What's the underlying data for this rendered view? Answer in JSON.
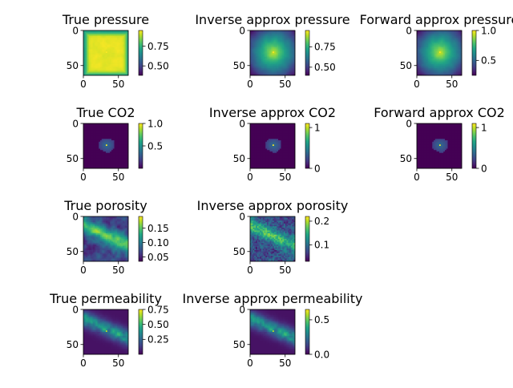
{
  "figure": {
    "colormap": "viridis"
  },
  "chart_data": [
    {
      "type": "heatmap",
      "id": "true-pressure",
      "title": "True pressure",
      "xticks": [
        "0",
        "50"
      ],
      "yticks": [
        "0",
        "50"
      ],
      "xlim": [
        0,
        64
      ],
      "ylim": [
        64,
        0
      ],
      "colorbar": {
        "min": 0.38,
        "max": 0.95,
        "ticks": [
          {
            "v": 0.75,
            "label": "0.75"
          },
          {
            "v": 0.5,
            "label": "0.50"
          }
        ]
      },
      "pattern": "pressure-plateau"
    },
    {
      "type": "heatmap",
      "id": "inverse-pressure",
      "title": "Inverse approx pressure",
      "xticks": [
        "0",
        "50"
      ],
      "yticks": [
        "0",
        "50"
      ],
      "xlim": [
        0,
        64
      ],
      "ylim": [
        64,
        0
      ],
      "colorbar": {
        "min": 0.4,
        "max": 0.95,
        "ticks": [
          {
            "v": 0.75,
            "label": "0.75"
          },
          {
            "v": 0.5,
            "label": "0.50"
          }
        ]
      },
      "pattern": "pressure-smooth"
    },
    {
      "type": "heatmap",
      "id": "forward-pressure",
      "title": "Forward approx pressure",
      "xticks": [
        "0",
        "50"
      ],
      "yticks": [
        "0",
        "50"
      ],
      "xlim": [
        0,
        64
      ],
      "ylim": [
        64,
        0
      ],
      "colorbar": {
        "min": 0.25,
        "max": 1.0,
        "ticks": [
          {
            "v": 1.0,
            "label": "1.0"
          },
          {
            "v": 0.5,
            "label": "0.5"
          }
        ]
      },
      "pattern": "pressure-smooth"
    },
    {
      "type": "heatmap",
      "id": "true-co2",
      "title": "True CO2",
      "xticks": [
        "0",
        "50"
      ],
      "yticks": [
        "0",
        "50"
      ],
      "xlim": [
        0,
        64
      ],
      "ylim": [
        64,
        0
      ],
      "colorbar": {
        "min": 0.0,
        "max": 1.0,
        "ticks": [
          {
            "v": 1.0,
            "label": "1.0"
          },
          {
            "v": 0.5,
            "label": "0.5"
          }
        ]
      },
      "pattern": "co2-blob"
    },
    {
      "type": "heatmap",
      "id": "inverse-co2",
      "title": "Inverse approx CO2",
      "xticks": [
        "0",
        "50"
      ],
      "yticks": [
        "0",
        "50"
      ],
      "xlim": [
        0,
        64
      ],
      "ylim": [
        64,
        0
      ],
      "colorbar": {
        "min": 0.0,
        "max": 1.1,
        "ticks": [
          {
            "v": 1.0,
            "label": "1"
          },
          {
            "v": 0.0,
            "label": "0"
          }
        ]
      },
      "pattern": "co2-blob"
    },
    {
      "type": "heatmap",
      "id": "forward-co2",
      "title": "Forward approx CO2",
      "xticks": [
        "0",
        "50"
      ],
      "yticks": [
        "0",
        "50"
      ],
      "xlim": [
        0,
        64
      ],
      "ylim": [
        64,
        0
      ],
      "colorbar": {
        "min": 0.0,
        "max": 1.1,
        "ticks": [
          {
            "v": 1.0,
            "label": "1"
          },
          {
            "v": 0.0,
            "label": "0"
          }
        ]
      },
      "pattern": "co2-blob"
    },
    {
      "type": "heatmap",
      "id": "true-porosity",
      "title": "True porosity",
      "xticks": [
        "0",
        "50"
      ],
      "yticks": [
        "0",
        "50"
      ],
      "xlim": [
        0,
        64
      ],
      "ylim": [
        64,
        0
      ],
      "colorbar": {
        "min": 0.035,
        "max": 0.19,
        "ticks": [
          {
            "v": 0.15,
            "label": "0.15"
          },
          {
            "v": 0.1,
            "label": "0.10"
          },
          {
            "v": 0.05,
            "label": "0.05"
          }
        ]
      },
      "pattern": "porosity"
    },
    {
      "type": "heatmap",
      "id": "inverse-porosity",
      "title": "Inverse approx porosity",
      "xticks": [
        "0",
        "50"
      ],
      "yticks": [
        "0",
        "50"
      ],
      "xlim": [
        0,
        64
      ],
      "ylim": [
        64,
        0
      ],
      "colorbar": {
        "min": 0.03,
        "max": 0.22,
        "ticks": [
          {
            "v": 0.2,
            "label": "0.2"
          },
          {
            "v": 0.1,
            "label": "0.1"
          }
        ]
      },
      "pattern": "porosity-noisy"
    },
    {
      "type": "heatmap",
      "id": "true-permeability",
      "title": "True permeability",
      "xticks": [
        "0",
        "50"
      ],
      "yticks": [
        "0",
        "50"
      ],
      "xlim": [
        0,
        64
      ],
      "ylim": [
        64,
        0
      ],
      "colorbar": {
        "min": 0.0,
        "max": 0.75,
        "ticks": [
          {
            "v": 0.75,
            "label": "0.75"
          },
          {
            "v": 0.5,
            "label": "0.50"
          },
          {
            "v": 0.25,
            "label": "0.25"
          }
        ]
      },
      "pattern": "permeability"
    },
    {
      "type": "heatmap",
      "id": "inverse-permeability",
      "title": "Inverse approx permeability",
      "xticks": [
        "0",
        "50"
      ],
      "yticks": [
        "0",
        "50"
      ],
      "xlim": [
        0,
        64
      ],
      "ylim": [
        64,
        0
      ],
      "colorbar": {
        "min": 0.0,
        "max": 0.65,
        "ticks": [
          {
            "v": 0.5,
            "label": "0.5"
          },
          {
            "v": 0.0,
            "label": "0.0"
          }
        ]
      },
      "pattern": "permeability"
    }
  ]
}
